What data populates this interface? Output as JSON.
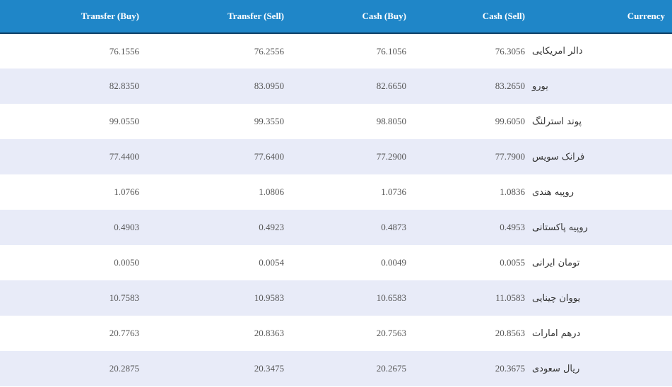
{
  "table": {
    "headers": {
      "transfer_buy": "Transfer (Buy)",
      "transfer_sell": "Transfer (Sell)",
      "cash_buy": "Cash (Buy)",
      "cash_sell": "Cash (Sell)",
      "currency": "Currency"
    },
    "rows": [
      {
        "transfer_buy": "76.1556",
        "transfer_sell": "76.2556",
        "cash_buy": "76.1056",
        "cash_sell": "76.3056",
        "currency": "دالر امریکایی"
      },
      {
        "transfer_buy": "82.8350",
        "transfer_sell": "83.0950",
        "cash_buy": "82.6650",
        "cash_sell": "83.2650",
        "currency": "یورو"
      },
      {
        "transfer_buy": "99.0550",
        "transfer_sell": "99.3550",
        "cash_buy": "98.8050",
        "cash_sell": "99.6050",
        "currency": "پوند استرلنگ"
      },
      {
        "transfer_buy": "77.4400",
        "transfer_sell": "77.6400",
        "cash_buy": "77.2900",
        "cash_sell": "77.7900",
        "currency": "فرانک سویس"
      },
      {
        "transfer_buy": "1.0766",
        "transfer_sell": "1.0806",
        "cash_buy": "1.0736",
        "cash_sell": "1.0836",
        "currency": "روپیه هندی"
      },
      {
        "transfer_buy": "0.4903",
        "transfer_sell": "0.4923",
        "cash_buy": "0.4873",
        "cash_sell": "0.4953",
        "currency": "روپیه پاکستانی"
      },
      {
        "transfer_buy": "0.0050",
        "transfer_sell": "0.0054",
        "cash_buy": "0.0049",
        "cash_sell": "0.0055",
        "currency": "تومان ایرانی"
      },
      {
        "transfer_buy": "10.7583",
        "transfer_sell": "10.9583",
        "cash_buy": "10.6583",
        "cash_sell": "11.0583",
        "currency": "یووان چینایی"
      },
      {
        "transfer_buy": "20.7763",
        "transfer_sell": "20.8363",
        "cash_buy": "20.7563",
        "cash_sell": "20.8563",
        "currency": "درهم امارات"
      },
      {
        "transfer_buy": "20.2875",
        "transfer_sell": "20.3475",
        "cash_buy": "20.2675",
        "cash_sell": "20.3675",
        "currency": "ریال سعودی"
      }
    ]
  },
  "colors": {
    "header_background": "#1f86c8",
    "header_border": "#0e3f66",
    "stripe_row": "#e8ebf8",
    "plain_row": "#ffffff"
  }
}
